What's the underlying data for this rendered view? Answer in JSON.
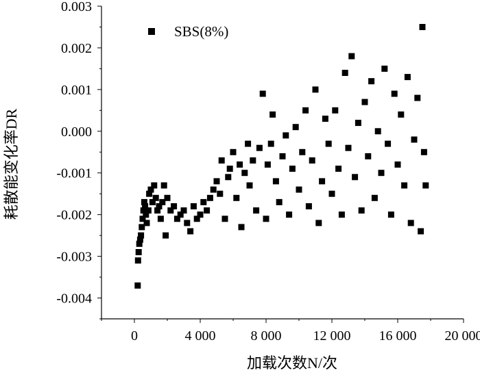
{
  "chart_data": {
    "type": "scatter",
    "title": "",
    "xlabel": "加载次数N/次",
    "ylabel": "耗散能变化率DR",
    "xlim": [
      -2000,
      20000
    ],
    "ylim": [
      -0.0045,
      0.003
    ],
    "x_ticks": [
      0,
      4000,
      8000,
      12000,
      16000,
      20000
    ],
    "x_tick_labels": [
      "0",
      "4 000",
      "8 000",
      "12 000",
      "16 000",
      "20 000"
    ],
    "y_ticks": [
      -0.004,
      -0.003,
      -0.002,
      -0.001,
      0.0,
      0.001,
      0.002,
      0.003
    ],
    "y_tick_labels": [
      "-0.004",
      "-0.003",
      "-0.002",
      "-0.001",
      "0.000",
      "0.001",
      "0.002",
      "0.003"
    ],
    "grid": false,
    "legend_position": "top-left",
    "colors": {
      "marker": "#000000"
    },
    "series": [
      {
        "name": "SBS(8%)",
        "marker": "square",
        "points": [
          [
            200,
            -0.0037
          ],
          [
            220,
            -0.0031
          ],
          [
            260,
            -0.0029
          ],
          [
            300,
            -0.0027
          ],
          [
            350,
            -0.0026
          ],
          [
            400,
            -0.0025
          ],
          [
            450,
            -0.0023
          ],
          [
            500,
            -0.0021
          ],
          [
            550,
            -0.0019
          ],
          [
            600,
            -0.0017
          ],
          [
            650,
            -0.0018
          ],
          [
            700,
            -0.002
          ],
          [
            750,
            -0.0022
          ],
          [
            850,
            -0.0019
          ],
          [
            900,
            -0.0015
          ],
          [
            1000,
            -0.0014
          ],
          [
            1100,
            -0.0017
          ],
          [
            1200,
            -0.0013
          ],
          [
            1300,
            -0.0016
          ],
          [
            1400,
            -0.0019
          ],
          [
            1500,
            -0.0018
          ],
          [
            1600,
            -0.0021
          ],
          [
            1700,
            -0.0017
          ],
          [
            1800,
            -0.0013
          ],
          [
            1900,
            -0.0025
          ],
          [
            2000,
            -0.0016
          ],
          [
            2200,
            -0.0019
          ],
          [
            2400,
            -0.0018
          ],
          [
            2600,
            -0.0021
          ],
          [
            2800,
            -0.002
          ],
          [
            3000,
            -0.0019
          ],
          [
            3200,
            -0.0022
          ],
          [
            3400,
            -0.0024
          ],
          [
            3600,
            -0.0018
          ],
          [
            3800,
            -0.0021
          ],
          [
            4000,
            -0.002
          ],
          [
            4200,
            -0.0017
          ],
          [
            4400,
            -0.0019
          ],
          [
            4600,
            -0.0016
          ],
          [
            4800,
            -0.0014
          ],
          [
            5000,
            -0.0012
          ],
          [
            5200,
            -0.0015
          ],
          [
            5300,
            -0.0007
          ],
          [
            5500,
            -0.0021
          ],
          [
            5700,
            -0.0011
          ],
          [
            5800,
            -0.0009
          ],
          [
            6000,
            -0.0005
          ],
          [
            6200,
            -0.0016
          ],
          [
            6400,
            -0.0008
          ],
          [
            6500,
            -0.0023
          ],
          [
            6700,
            -0.001
          ],
          [
            6900,
            -0.0003
          ],
          [
            7000,
            -0.0013
          ],
          [
            7200,
            -0.0007
          ],
          [
            7400,
            -0.0019
          ],
          [
            7600,
            -0.0004
          ],
          [
            7800,
            0.0009
          ],
          [
            8000,
            -0.0021
          ],
          [
            8100,
            -0.0008
          ],
          [
            8300,
            -0.0003
          ],
          [
            8400,
            0.0004
          ],
          [
            8600,
            -0.0012
          ],
          [
            8800,
            -0.0017
          ],
          [
            9000,
            -0.0006
          ],
          [
            9200,
            -0.0001
          ],
          [
            9400,
            -0.002
          ],
          [
            9600,
            -0.0009
          ],
          [
            9800,
            0.0001
          ],
          [
            10000,
            -0.0014
          ],
          [
            10200,
            -0.0005
          ],
          [
            10400,
            0.0005
          ],
          [
            10600,
            -0.0018
          ],
          [
            10800,
            -0.0007
          ],
          [
            11000,
            0.001
          ],
          [
            11200,
            -0.0022
          ],
          [
            11400,
            -0.0012
          ],
          [
            11600,
            0.0003
          ],
          [
            11800,
            -0.0003
          ],
          [
            12000,
            -0.0015
          ],
          [
            12200,
            0.0005
          ],
          [
            12400,
            -0.0009
          ],
          [
            12600,
            -0.002
          ],
          [
            12800,
            0.0014
          ],
          [
            13000,
            -0.0004
          ],
          [
            13200,
            0.0018
          ],
          [
            13400,
            -0.0011
          ],
          [
            13600,
            0.0002
          ],
          [
            13800,
            -0.0019
          ],
          [
            14000,
            0.0007
          ],
          [
            14200,
            -0.0006
          ],
          [
            14400,
            0.0012
          ],
          [
            14600,
            -0.0016
          ],
          [
            14800,
            0.0
          ],
          [
            15000,
            -0.001
          ],
          [
            15200,
            0.0015
          ],
          [
            15400,
            -0.0003
          ],
          [
            15600,
            -0.002
          ],
          [
            15800,
            0.0009
          ],
          [
            16000,
            -0.0008
          ],
          [
            16200,
            0.0004
          ],
          [
            16400,
            -0.0013
          ],
          [
            16600,
            0.0013
          ],
          [
            16800,
            -0.0022
          ],
          [
            17000,
            -0.0002
          ],
          [
            17200,
            0.0008
          ],
          [
            17400,
            -0.0024
          ],
          [
            17500,
            0.0025
          ],
          [
            17600,
            -0.0005
          ],
          [
            17700,
            -0.0013
          ]
        ]
      }
    ]
  }
}
